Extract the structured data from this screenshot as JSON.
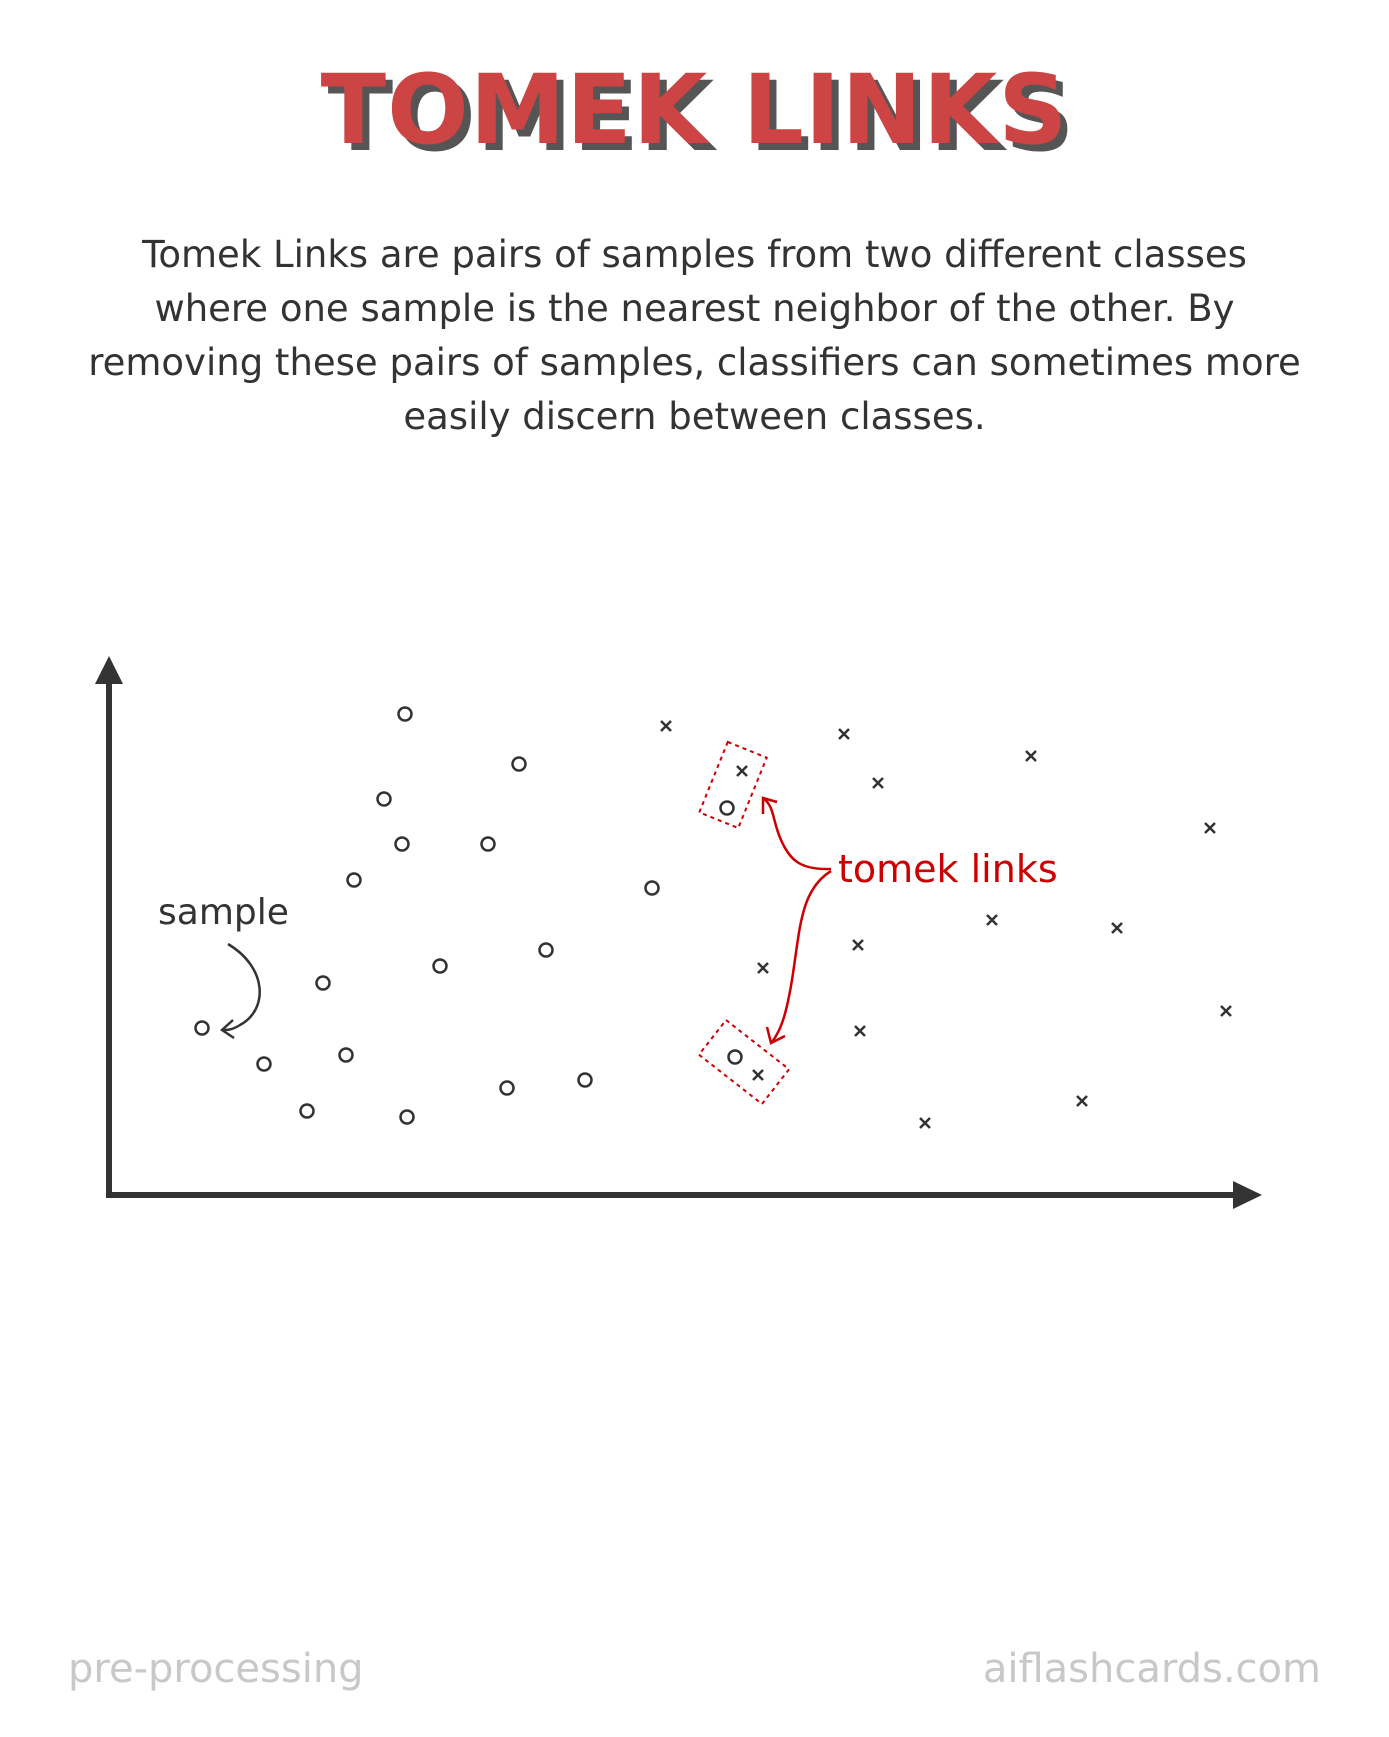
{
  "title": "TOMEK LINKS",
  "description": "Tomek Links are pairs of samples from two different classes where one sample is the nearest neighbor of the other. By removing these pairs of samples, classifiers can sometimes more easily discern between classes.",
  "diagram": {
    "sample_label": "sample",
    "tomek_label": "tomek links",
    "colors": {
      "ink": "#333333",
      "accent": "#cc0000",
      "title": "#cc4444",
      "footer": "#c8c8c8"
    },
    "markers": {
      "class_a": "circle",
      "class_b": "cross"
    }
  },
  "footer": {
    "left": "pre-processing",
    "right": "aiflashcards.com"
  }
}
